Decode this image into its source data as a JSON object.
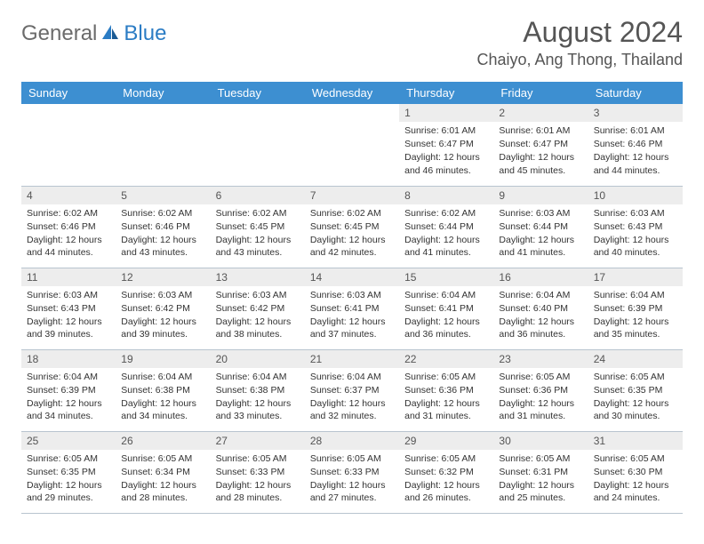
{
  "logo": {
    "gray": "General",
    "blue": "Blue"
  },
  "title": "August 2024",
  "location": "Chaiyo, Ang Thong, Thailand",
  "colors": {
    "header_bg": "#3d8fd1",
    "header_fg": "#ffffff",
    "daynum_bg": "#ededed",
    "border": "#b8c4cf",
    "text": "#333333",
    "logo_gray": "#6b6b6b",
    "logo_blue": "#2b7cc4"
  },
  "typography": {
    "title_size": 32,
    "location_size": 18,
    "header_cell_size": 13,
    "daynum_size": 12,
    "info_size": 10.5
  },
  "weekdays": [
    "Sunday",
    "Monday",
    "Tuesday",
    "Wednesday",
    "Thursday",
    "Friday",
    "Saturday"
  ],
  "weeks": [
    [
      null,
      null,
      null,
      null,
      {
        "d": "1",
        "sr": "6:01 AM",
        "ss": "6:47 PM",
        "dl": "12 hours and 46 minutes."
      },
      {
        "d": "2",
        "sr": "6:01 AM",
        "ss": "6:47 PM",
        "dl": "12 hours and 45 minutes."
      },
      {
        "d": "3",
        "sr": "6:01 AM",
        "ss": "6:46 PM",
        "dl": "12 hours and 44 minutes."
      }
    ],
    [
      {
        "d": "4",
        "sr": "6:02 AM",
        "ss": "6:46 PM",
        "dl": "12 hours and 44 minutes."
      },
      {
        "d": "5",
        "sr": "6:02 AM",
        "ss": "6:46 PM",
        "dl": "12 hours and 43 minutes."
      },
      {
        "d": "6",
        "sr": "6:02 AM",
        "ss": "6:45 PM",
        "dl": "12 hours and 43 minutes."
      },
      {
        "d": "7",
        "sr": "6:02 AM",
        "ss": "6:45 PM",
        "dl": "12 hours and 42 minutes."
      },
      {
        "d": "8",
        "sr": "6:02 AM",
        "ss": "6:44 PM",
        "dl": "12 hours and 41 minutes."
      },
      {
        "d": "9",
        "sr": "6:03 AM",
        "ss": "6:44 PM",
        "dl": "12 hours and 41 minutes."
      },
      {
        "d": "10",
        "sr": "6:03 AM",
        "ss": "6:43 PM",
        "dl": "12 hours and 40 minutes."
      }
    ],
    [
      {
        "d": "11",
        "sr": "6:03 AM",
        "ss": "6:43 PM",
        "dl": "12 hours and 39 minutes."
      },
      {
        "d": "12",
        "sr": "6:03 AM",
        "ss": "6:42 PM",
        "dl": "12 hours and 39 minutes."
      },
      {
        "d": "13",
        "sr": "6:03 AM",
        "ss": "6:42 PM",
        "dl": "12 hours and 38 minutes."
      },
      {
        "d": "14",
        "sr": "6:03 AM",
        "ss": "6:41 PM",
        "dl": "12 hours and 37 minutes."
      },
      {
        "d": "15",
        "sr": "6:04 AM",
        "ss": "6:41 PM",
        "dl": "12 hours and 36 minutes."
      },
      {
        "d": "16",
        "sr": "6:04 AM",
        "ss": "6:40 PM",
        "dl": "12 hours and 36 minutes."
      },
      {
        "d": "17",
        "sr": "6:04 AM",
        "ss": "6:39 PM",
        "dl": "12 hours and 35 minutes."
      }
    ],
    [
      {
        "d": "18",
        "sr": "6:04 AM",
        "ss": "6:39 PM",
        "dl": "12 hours and 34 minutes."
      },
      {
        "d": "19",
        "sr": "6:04 AM",
        "ss": "6:38 PM",
        "dl": "12 hours and 34 minutes."
      },
      {
        "d": "20",
        "sr": "6:04 AM",
        "ss": "6:38 PM",
        "dl": "12 hours and 33 minutes."
      },
      {
        "d": "21",
        "sr": "6:04 AM",
        "ss": "6:37 PM",
        "dl": "12 hours and 32 minutes."
      },
      {
        "d": "22",
        "sr": "6:05 AM",
        "ss": "6:36 PM",
        "dl": "12 hours and 31 minutes."
      },
      {
        "d": "23",
        "sr": "6:05 AM",
        "ss": "6:36 PM",
        "dl": "12 hours and 31 minutes."
      },
      {
        "d": "24",
        "sr": "6:05 AM",
        "ss": "6:35 PM",
        "dl": "12 hours and 30 minutes."
      }
    ],
    [
      {
        "d": "25",
        "sr": "6:05 AM",
        "ss": "6:35 PM",
        "dl": "12 hours and 29 minutes."
      },
      {
        "d": "26",
        "sr": "6:05 AM",
        "ss": "6:34 PM",
        "dl": "12 hours and 28 minutes."
      },
      {
        "d": "27",
        "sr": "6:05 AM",
        "ss": "6:33 PM",
        "dl": "12 hours and 28 minutes."
      },
      {
        "d": "28",
        "sr": "6:05 AM",
        "ss": "6:33 PM",
        "dl": "12 hours and 27 minutes."
      },
      {
        "d": "29",
        "sr": "6:05 AM",
        "ss": "6:32 PM",
        "dl": "12 hours and 26 minutes."
      },
      {
        "d": "30",
        "sr": "6:05 AM",
        "ss": "6:31 PM",
        "dl": "12 hours and 25 minutes."
      },
      {
        "d": "31",
        "sr": "6:05 AM",
        "ss": "6:30 PM",
        "dl": "12 hours and 24 minutes."
      }
    ]
  ],
  "labels": {
    "sr": "Sunrise: ",
    "ss": "Sunset: ",
    "dl": "Daylight: "
  }
}
